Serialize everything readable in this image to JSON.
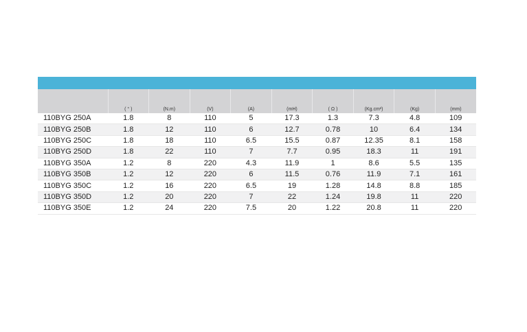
{
  "table": {
    "header": [
      "",
      "( ° )",
      "(N.m)",
      "(V)",
      "(A)",
      "(mH)",
      "( Ω )",
      "(Kg.cm²)",
      "(Kg)",
      "(mm)"
    ],
    "rows": [
      [
        "110BYG 250A",
        "1.8",
        "8",
        "110",
        "5",
        "17.3",
        "1.3",
        "7.3",
        "4.8",
        "109"
      ],
      [
        "110BYG 250B",
        "1.8",
        "12",
        "110",
        "6",
        "12.7",
        "0.78",
        "10",
        "6.4",
        "134"
      ],
      [
        "110BYG 250C",
        "1.8",
        "18",
        "110",
        "6.5",
        "15.5",
        "0.87",
        "12.35",
        "8.1",
        "158"
      ],
      [
        "110BYG 250D",
        "1.8",
        "22",
        "110",
        "7",
        "7.7",
        "0.95",
        "18.3",
        "11",
        "191"
      ],
      [
        "110BYG 350A",
        "1.2",
        "8",
        "220",
        "4.3",
        "11.9",
        "1",
        "8.6",
        "5.5",
        "135"
      ],
      [
        "110BYG 350B",
        "1.2",
        "12",
        "220",
        "6",
        "11.5",
        "0.76",
        "11.9",
        "7.1",
        "161"
      ],
      [
        "110BYG 350C",
        "1.2",
        "16",
        "220",
        "6.5",
        "19",
        "1.28",
        "14.8",
        "8.8",
        "185"
      ],
      [
        "110BYG 350D",
        "1.2",
        "20",
        "220",
        "7",
        "22",
        "1.24",
        "19.8",
        "11",
        "220"
      ],
      [
        "110BYG 350E",
        "1.2",
        "24",
        "220",
        "7.5",
        "20",
        "1.22",
        "20.8",
        "11",
        "220"
      ]
    ]
  }
}
